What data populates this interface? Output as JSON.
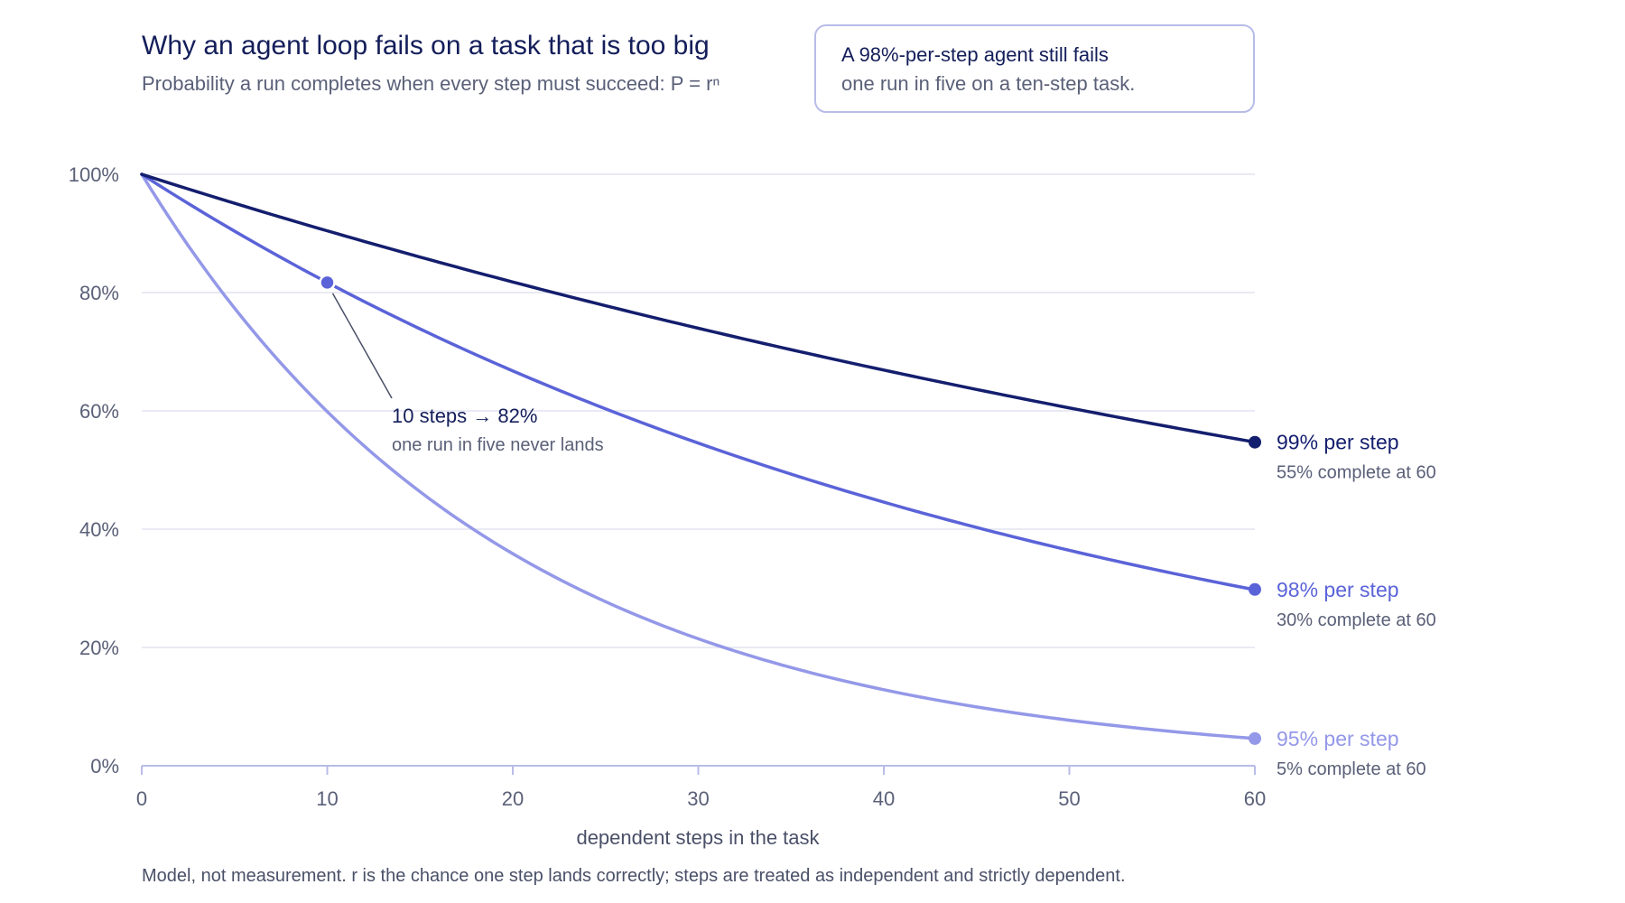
{
  "title": "Why an agent loop fails on a task that is too big",
  "subtitle": "Probability a run completes when every step must succeed: P = rⁿ",
  "callout": {
    "line1": "A 98%-per-step agent still fails",
    "line2": "one run in five on a ten-step task."
  },
  "annotation": {
    "main": "10 steps → 82%",
    "sub": "one run in five never lands",
    "x": 10,
    "y": 81.7
  },
  "footnote": "Model, not measurement. r is the chance one step lands correctly; steps are treated as independent and strictly dependent.",
  "chart_data": {
    "type": "line",
    "title": "Why an agent loop fails on a task that is too big",
    "xlabel": "dependent steps in the task",
    "ylabel": "",
    "xlim": [
      0,
      60
    ],
    "ylim": [
      0,
      100
    ],
    "x_ticks": [
      0,
      10,
      20,
      30,
      40,
      50,
      60
    ],
    "y_ticks": [
      0,
      20,
      40,
      60,
      80,
      100
    ],
    "y_tick_labels": [
      "0%",
      "20%",
      "40%",
      "60%",
      "80%",
      "100%"
    ],
    "grid": true,
    "legend": "end-labels",
    "series": [
      {
        "name": "99% per step",
        "rate": 0.99,
        "end_note": "55% complete at 60",
        "color": "#141e6e",
        "x": [
          0,
          5,
          10,
          15,
          20,
          25,
          30,
          35,
          40,
          45,
          50,
          55,
          60
        ],
        "y": [
          100,
          95.1,
          90.4,
          86.0,
          81.8,
          77.8,
          74.0,
          70.3,
          66.9,
          63.6,
          60.5,
          57.5,
          54.7
        ]
      },
      {
        "name": "98% per step",
        "rate": 0.98,
        "end_note": "30% complete at 60",
        "color": "#5b63d8",
        "x": [
          0,
          5,
          10,
          15,
          20,
          25,
          30,
          35,
          40,
          45,
          50,
          55,
          60
        ],
        "y": [
          100,
          90.4,
          81.7,
          73.9,
          66.8,
          60.3,
          54.5,
          49.3,
          44.6,
          40.3,
          36.4,
          32.9,
          29.8
        ]
      },
      {
        "name": "95% per step",
        "rate": 0.95,
        "end_note": "5% complete at 60",
        "color": "#9498e8",
        "x": [
          0,
          5,
          10,
          15,
          20,
          25,
          30,
          35,
          40,
          45,
          50,
          55,
          60
        ],
        "y": [
          100,
          77.4,
          59.9,
          46.3,
          35.8,
          27.7,
          21.5,
          16.6,
          12.9,
          9.9,
          7.7,
          6.0,
          4.6
        ]
      }
    ]
  }
}
